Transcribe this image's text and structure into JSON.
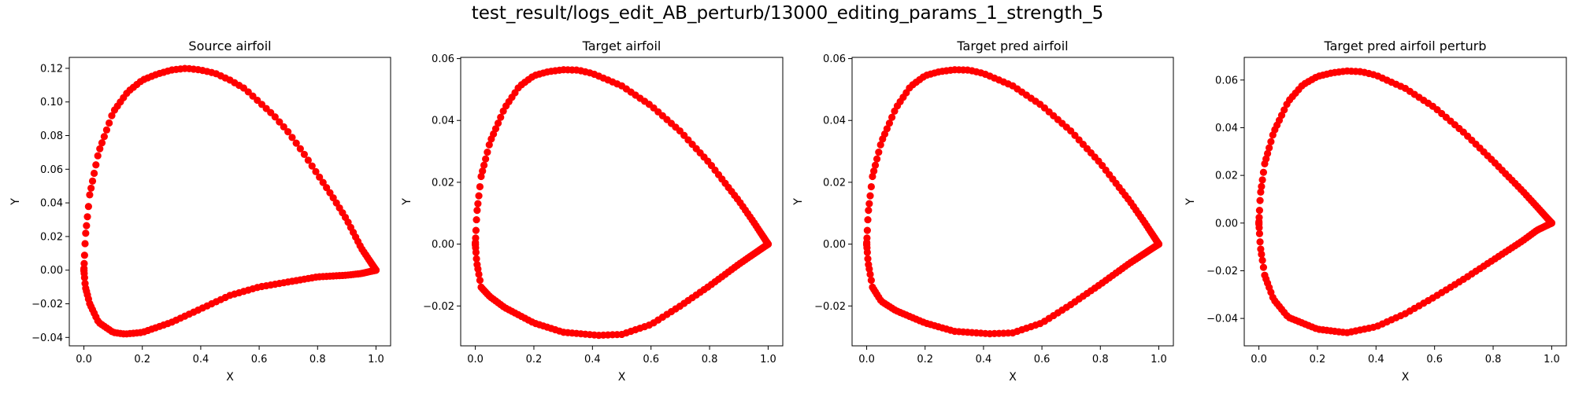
{
  "figure": {
    "suptitle": "test_result/logs_edit_AB_perturb/13000_editing_params_1_strength_5",
    "marker_color": "#ff0000"
  },
  "chart_data": [
    {
      "type": "scatter",
      "title": "Source airfoil",
      "xlabel": "X",
      "ylabel": "Y",
      "xlim": [
        -0.05,
        1.05
      ],
      "ylim": [
        -0.045,
        0.1265
      ],
      "xticks": [
        0.0,
        0.2,
        0.4,
        0.6,
        0.8,
        1.0
      ],
      "xtick_labels": [
        "0.0",
        "0.2",
        "0.4",
        "0.6",
        "0.8",
        "1.0"
      ],
      "yticks": [
        -0.04,
        -0.02,
        0.0,
        0.02,
        0.04,
        0.06,
        0.08,
        0.1,
        0.12
      ],
      "ytick_labels": [
        "−0.04",
        "−0.02",
        "0.00",
        "0.02",
        "0.04",
        "0.06",
        "0.08",
        "0.10",
        "0.12"
      ],
      "series": [
        {
          "color": "#ff0000",
          "upper": [
            [
              0.0,
              0.0
            ],
            [
              0.005,
              0.02
            ],
            [
              0.02,
              0.045
            ],
            [
              0.05,
              0.07
            ],
            [
              0.1,
              0.094
            ],
            [
              0.15,
              0.106
            ],
            [
              0.2,
              0.113
            ],
            [
              0.25,
              0.1165
            ],
            [
              0.3,
              0.119
            ],
            [
              0.35,
              0.12
            ],
            [
              0.4,
              0.119
            ],
            [
              0.45,
              0.117
            ],
            [
              0.5,
              0.113
            ],
            [
              0.55,
              0.108
            ],
            [
              0.6,
              0.1
            ],
            [
              0.65,
              0.092
            ],
            [
              0.7,
              0.082
            ],
            [
              0.75,
              0.07
            ],
            [
              0.8,
              0.057
            ],
            [
              0.85,
              0.044
            ],
            [
              0.9,
              0.03
            ],
            [
              0.95,
              0.013
            ],
            [
              1.0,
              0.0
            ]
          ],
          "lower": [
            [
              0.0,
              0.0
            ],
            [
              0.005,
              -0.01
            ],
            [
              0.02,
              -0.02
            ],
            [
              0.05,
              -0.031
            ],
            [
              0.1,
              -0.037
            ],
            [
              0.14,
              -0.038
            ],
            [
              0.2,
              -0.037
            ],
            [
              0.3,
              -0.031
            ],
            [
              0.4,
              -0.023
            ],
            [
              0.5,
              -0.015
            ],
            [
              0.6,
              -0.01
            ],
            [
              0.7,
              -0.007
            ],
            [
              0.8,
              -0.004
            ],
            [
              0.9,
              -0.003
            ],
            [
              0.95,
              -0.002
            ],
            [
              1.0,
              0.0
            ]
          ],
          "n_points": 200
        }
      ]
    },
    {
      "type": "scatter",
      "title": "Target airfoil",
      "xlabel": "X",
      "ylabel": "Y",
      "xlim": [
        -0.05,
        1.05
      ],
      "ylim": [
        -0.0329,
        0.0604
      ],
      "xticks": [
        0.0,
        0.2,
        0.4,
        0.6,
        0.8,
        1.0
      ],
      "xtick_labels": [
        "0.0",
        "0.2",
        "0.4",
        "0.6",
        "0.8",
        "1.0"
      ],
      "yticks": [
        -0.02,
        0.0,
        0.02,
        0.04,
        0.06
      ],
      "ytick_labels": [
        "−0.02",
        "0.00",
        "0.02",
        "0.04",
        "0.06"
      ],
      "series": [
        {
          "color": "#ff0000",
          "upper": [
            [
              0.0,
              0.0
            ],
            [
              0.005,
              0.01
            ],
            [
              0.02,
              0.022
            ],
            [
              0.05,
              0.033
            ],
            [
              0.1,
              0.044
            ],
            [
              0.15,
              0.051
            ],
            [
              0.2,
              0.0545
            ],
            [
              0.25,
              0.0558
            ],
            [
              0.3,
              0.0564
            ],
            [
              0.35,
              0.0563
            ],
            [
              0.4,
              0.0552
            ],
            [
              0.5,
              0.0512
            ],
            [
              0.6,
              0.0448
            ],
            [
              0.7,
              0.0365
            ],
            [
              0.8,
              0.0262
            ],
            [
              0.9,
              0.014
            ],
            [
              0.95,
              0.0072
            ],
            [
              1.0,
              0.0
            ]
          ],
          "lower": [
            [
              0.0,
              0.0
            ],
            [
              0.005,
              -0.006
            ],
            [
              0.02,
              -0.014
            ],
            [
              0.05,
              -0.017
            ],
            [
              0.1,
              -0.0205
            ],
            [
              0.2,
              -0.0255
            ],
            [
              0.3,
              -0.0285
            ],
            [
              0.42,
              -0.0295
            ],
            [
              0.5,
              -0.0292
            ],
            [
              0.6,
              -0.026
            ],
            [
              0.7,
              -0.02
            ],
            [
              0.8,
              -0.0135
            ],
            [
              0.9,
              -0.0065
            ],
            [
              1.0,
              0.0
            ]
          ],
          "n_points": 200
        }
      ]
    },
    {
      "type": "scatter",
      "title": "Target pred airfoil",
      "xlabel": "X",
      "ylabel": "Y",
      "xlim": [
        -0.05,
        1.05
      ],
      "ylim": [
        -0.0329,
        0.0604
      ],
      "xticks": [
        0.0,
        0.2,
        0.4,
        0.6,
        0.8,
        1.0
      ],
      "xtick_labels": [
        "0.0",
        "0.2",
        "0.4",
        "0.6",
        "0.8",
        "1.0"
      ],
      "yticks": [
        -0.02,
        0.0,
        0.02,
        0.04,
        0.06
      ],
      "ytick_labels": [
        "−0.02",
        "0.00",
        "0.02",
        "0.04",
        "0.06"
      ],
      "series": [
        {
          "color": "#ff0000",
          "upper": [
            [
              0.0,
              0.0
            ],
            [
              0.005,
              0.01
            ],
            [
              0.02,
              0.022
            ],
            [
              0.05,
              0.033
            ],
            [
              0.1,
              0.044
            ],
            [
              0.15,
              0.051
            ],
            [
              0.2,
              0.0545
            ],
            [
              0.25,
              0.0558
            ],
            [
              0.3,
              0.0564
            ],
            [
              0.35,
              0.0563
            ],
            [
              0.4,
              0.0552
            ],
            [
              0.5,
              0.0512
            ],
            [
              0.6,
              0.0448
            ],
            [
              0.7,
              0.0365
            ],
            [
              0.8,
              0.0262
            ],
            [
              0.9,
              0.014
            ],
            [
              0.95,
              0.0072
            ],
            [
              1.0,
              0.0
            ]
          ],
          "lower": [
            [
              0.0,
              0.0
            ],
            [
              0.005,
              -0.006
            ],
            [
              0.02,
              -0.014
            ],
            [
              0.05,
              -0.0185
            ],
            [
              0.1,
              -0.0215
            ],
            [
              0.2,
              -0.0255
            ],
            [
              0.3,
              -0.0282
            ],
            [
              0.42,
              -0.029
            ],
            [
              0.5,
              -0.0287
            ],
            [
              0.6,
              -0.0255
            ],
            [
              0.7,
              -0.0195
            ],
            [
              0.8,
              -0.013
            ],
            [
              0.9,
              -0.0062
            ],
            [
              1.0,
              0.0
            ]
          ],
          "n_points": 200
        }
      ]
    },
    {
      "type": "scatter",
      "title": "Target pred airfoil perturb",
      "xlabel": "X",
      "ylabel": "Y",
      "xlim": [
        -0.05,
        1.05
      ],
      "ylim": [
        -0.0515,
        0.0695
      ],
      "xticks": [
        0.0,
        0.2,
        0.4,
        0.6,
        0.8,
        1.0
      ],
      "xtick_labels": [
        "0.0",
        "0.2",
        "0.4",
        "0.6",
        "0.8",
        "1.0"
      ],
      "yticks": [
        -0.04,
        -0.02,
        0.0,
        0.02,
        0.04,
        0.06
      ],
      "ytick_labels": [
        "−0.04",
        "−0.02",
        "0.00",
        "0.02",
        "0.04",
        "0.06"
      ],
      "series": [
        {
          "color": "#ff0000",
          "upper": [
            [
              0.0,
              0.0
            ],
            [
              0.005,
              0.012
            ],
            [
              0.02,
              0.025
            ],
            [
              0.05,
              0.038
            ],
            [
              0.1,
              0.051
            ],
            [
              0.15,
              0.058
            ],
            [
              0.2,
              0.0615
            ],
            [
              0.25,
              0.063
            ],
            [
              0.3,
              0.0638
            ],
            [
              0.35,
              0.0635
            ],
            [
              0.4,
              0.062
            ],
            [
              0.5,
              0.0565
            ],
            [
              0.6,
              0.0485
            ],
            [
              0.7,
              0.038
            ],
            [
              0.8,
              0.026
            ],
            [
              0.9,
              0.0135
            ],
            [
              0.95,
              0.0068
            ],
            [
              1.0,
              0.0
            ]
          ],
          "lower": [
            [
              0.0,
              0.0
            ],
            [
              0.005,
              -0.01
            ],
            [
              0.02,
              -0.022
            ],
            [
              0.05,
              -0.032
            ],
            [
              0.1,
              -0.0395
            ],
            [
              0.2,
              -0.0445
            ],
            [
              0.3,
              -0.046
            ],
            [
              0.4,
              -0.0435
            ],
            [
              0.5,
              -0.038
            ],
            [
              0.6,
              -0.031
            ],
            [
              0.7,
              -0.0235
            ],
            [
              0.8,
              -0.0155
            ],
            [
              0.9,
              -0.0075
            ],
            [
              0.95,
              -0.003
            ],
            [
              1.0,
              0.0
            ]
          ],
          "n_points": 200
        }
      ]
    }
  ]
}
